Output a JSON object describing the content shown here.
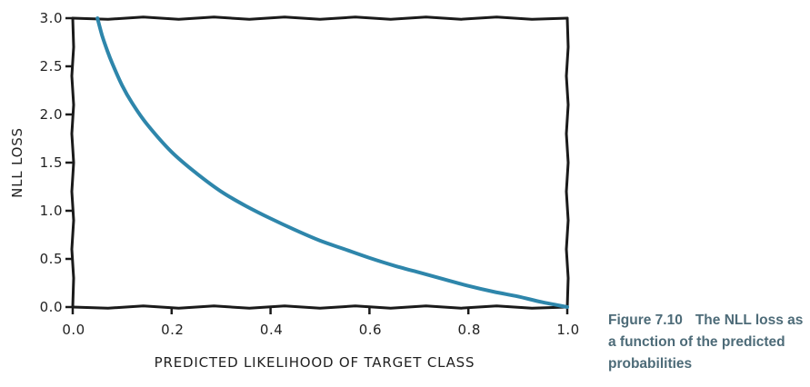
{
  "chart_data": {
    "type": "line",
    "xlabel": "PREDICTED LIKELIHOOD OF TARGET CLASS",
    "ylabel": "NLL LOSS",
    "xlim": [
      0.0,
      1.0
    ],
    "ylim": [
      0.0,
      3.0
    ],
    "xticks": [
      "0.0",
      "0.2",
      "0.4",
      "0.6",
      "0.8",
      "1.0"
    ],
    "yticks": [
      "0.0",
      "0.5",
      "1.0",
      "1.5",
      "2.0",
      "2.5",
      "3.0"
    ],
    "grid": false,
    "series": [
      {
        "color": "#2e86ab",
        "x": [
          0.05,
          0.06,
          0.07,
          0.08,
          0.1,
          0.12,
          0.15,
          0.2,
          0.25,
          0.3,
          0.35,
          0.4,
          0.45,
          0.5,
          0.55,
          0.6,
          0.65,
          0.7,
          0.75,
          0.8,
          0.85,
          0.9,
          0.95,
          1.0
        ],
        "y": [
          3.0,
          2.81,
          2.66,
          2.53,
          2.3,
          2.12,
          1.9,
          1.61,
          1.39,
          1.2,
          1.05,
          0.92,
          0.8,
          0.69,
          0.6,
          0.51,
          0.43,
          0.36,
          0.29,
          0.22,
          0.16,
          0.11,
          0.05,
          0.0
        ]
      }
    ]
  },
  "caption": {
    "figure_number": "Figure 7.10",
    "text": "The NLL loss as a function of the predicted probabilities"
  }
}
